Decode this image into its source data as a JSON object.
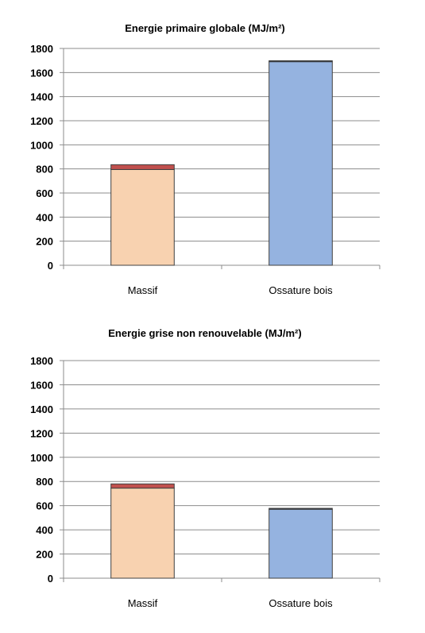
{
  "chart_data": [
    {
      "type": "bar",
      "stacked": true,
      "title": "Energie primaire globale (MJ/m²)",
      "categories": [
        "Massif",
        "Ossature bois"
      ],
      "series": [
        {
          "values": [
            795,
            1690
          ],
          "colors": [
            "#F8D2B0",
            "#95B3E0"
          ]
        },
        {
          "values": [
            40,
            8
          ],
          "colors": [
            "#C0504D",
            "#1F2A44"
          ]
        }
      ],
      "ylim": [
        0,
        1800
      ],
      "yticks": [
        0,
        200,
        400,
        600,
        800,
        1000,
        1200,
        1400,
        1600,
        1800
      ],
      "grid": true,
      "legend": "none"
    },
    {
      "type": "bar",
      "stacked": true,
      "title": "Energie grise non renouvelable (MJ/m²)",
      "categories": [
        "Massif",
        "Ossature bois"
      ],
      "series": [
        {
          "values": [
            745,
            570
          ],
          "colors": [
            "#F8D2B0",
            "#95B3E0"
          ]
        },
        {
          "values": [
            35,
            8
          ],
          "colors": [
            "#C0504D",
            "#1F2A44"
          ]
        }
      ],
      "ylim": [
        0,
        1800
      ],
      "yticks": [
        0,
        200,
        400,
        600,
        800,
        1000,
        1200,
        1400,
        1600,
        1800
      ],
      "grid": true,
      "legend": "none"
    }
  ]
}
